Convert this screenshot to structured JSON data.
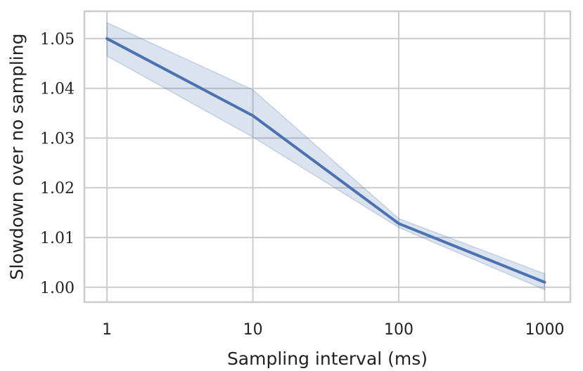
{
  "chart_data": {
    "type": "line",
    "xlabel": "Sampling interval (ms)",
    "ylabel": "Slowdown over no sampling",
    "x_scale": "log",
    "x_ticks": [
      1,
      10,
      100,
      1000
    ],
    "x_tick_labels": [
      "1",
      "10",
      "100",
      "1000"
    ],
    "xlim": [
      0.7,
      1500
    ],
    "y_ticks": [
      1.0,
      1.01,
      1.02,
      1.03,
      1.04,
      1.05
    ],
    "y_tick_labels": [
      "1.00",
      "1.01",
      "1.02",
      "1.03",
      "1.04",
      "1.05"
    ],
    "ylim": [
      0.997,
      1.0555
    ],
    "grid": true,
    "series": [
      {
        "x": [
          1,
          10,
          100,
          1000
        ],
        "values": [
          1.05,
          1.0345,
          1.0128,
          1.001
        ],
        "ci_lower": [
          1.0465,
          1.0302,
          1.012,
          0.9995
        ],
        "ci_upper": [
          1.0532,
          1.0397,
          1.0138,
          1.0027
        ],
        "color": "#4c72b0",
        "band_color": "#4c72b0"
      }
    ]
  }
}
